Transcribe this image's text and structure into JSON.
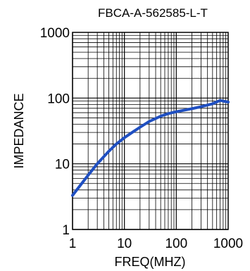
{
  "chart_data": {
    "type": "line",
    "title": "FBCA-A-562585-L-T",
    "xlabel": "FREQ(MHZ)",
    "ylabel": "IMPEDANCE",
    "x_scale": "log",
    "y_scale": "log",
    "xlim": [
      1,
      1000
    ],
    "ylim": [
      1,
      1000
    ],
    "grid": true,
    "x_ticks": [
      "1",
      "10",
      "100",
      "1000"
    ],
    "y_ticks": [
      "1",
      "10",
      "100",
      "1000"
    ],
    "series": [
      {
        "color": "#1f4fc1",
        "x": [
          1,
          1.5,
          2,
          3,
          5,
          7,
          10,
          15,
          20,
          30,
          50,
          70,
          100,
          150,
          200,
          300,
          500,
          700,
          1000
        ],
        "y": [
          3.3,
          5.0,
          6.7,
          10.0,
          15.5,
          20.0,
          25.0,
          31.0,
          36.0,
          44.0,
          53.0,
          58.0,
          62.0,
          66.0,
          69.0,
          74.0,
          82.0,
          92.0,
          87.0
        ]
      }
    ]
  }
}
